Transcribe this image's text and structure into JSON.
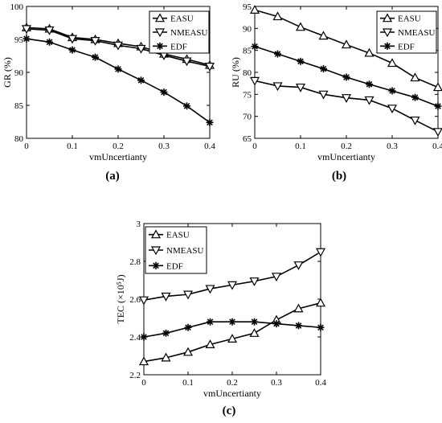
{
  "chart_data": [
    {
      "type": "line",
      "panel_label": "(a)",
      "x": [
        0,
        0.05,
        0.1,
        0.15,
        0.2,
        0.25,
        0.3,
        0.35,
        0.4
      ],
      "xlim": [
        0,
        0.4
      ],
      "ylim": [
        80,
        100
      ],
      "xticks": [
        "0",
        "0.1",
        "0.2",
        "0.3",
        "0.4"
      ],
      "yticks": [
        "80",
        "85",
        "90",
        "95",
        "100"
      ],
      "xlabel": "vmUncertianty",
      "ylabel": "GR (%)",
      "legend_position": "top-right",
      "grid": false,
      "series": [
        {
          "name": "EASU",
          "marker": "triangle-up",
          "values": [
            96.8,
            96.6,
            95.3,
            95.0,
            94.4,
            93.9,
            92.8,
            92.0,
            91.1
          ]
        },
        {
          "name": "NMEASU",
          "marker": "triangle-down",
          "values": [
            96.6,
            96.4,
            95.1,
            94.8,
            94.1,
            93.6,
            92.6,
            91.7,
            90.9
          ]
        },
        {
          "name": "EDF",
          "marker": "star",
          "values": [
            95.1,
            94.6,
            93.4,
            92.3,
            90.5,
            88.8,
            87.0,
            84.9,
            82.4
          ]
        }
      ]
    },
    {
      "type": "line",
      "panel_label": "(b)",
      "x": [
        0,
        0.05,
        0.1,
        0.15,
        0.2,
        0.25,
        0.3,
        0.35,
        0.4
      ],
      "xlim": [
        0,
        0.4
      ],
      "ylim": [
        65,
        95
      ],
      "xticks": [
        "0",
        "0.1",
        "0.2",
        "0.3",
        "0.4"
      ],
      "yticks": [
        "65",
        "70",
        "75",
        "80",
        "85",
        "90",
        "95"
      ],
      "xlabel": "vmUncertianty",
      "ylabel": "RU (%)",
      "legend_position": "top-right",
      "grid": false,
      "series": [
        {
          "name": "EASU",
          "marker": "triangle-up",
          "values": [
            94.2,
            92.7,
            90.3,
            88.3,
            86.3,
            84.4,
            82.1,
            78.8,
            76.6
          ]
        },
        {
          "name": "NMEASU",
          "marker": "triangle-down",
          "values": [
            78.1,
            76.9,
            76.6,
            75.0,
            74.2,
            73.7,
            71.8,
            69.1,
            66.5
          ]
        },
        {
          "name": "EDF",
          "marker": "star",
          "values": [
            85.9,
            84.2,
            82.5,
            80.8,
            78.9,
            77.3,
            75.8,
            74.3,
            72.3
          ]
        }
      ]
    },
    {
      "type": "line",
      "panel_label": "(c)",
      "x": [
        0,
        0.05,
        0.1,
        0.15,
        0.2,
        0.25,
        0.3,
        0.35,
        0.4
      ],
      "xlim": [
        0,
        0.4
      ],
      "ylim": [
        2.2,
        3.0
      ],
      "xticks": [
        "0",
        "0.1",
        "0.2",
        "0.3",
        "0.4"
      ],
      "yticks": [
        "2.2",
        "2.4",
        "2.6",
        "2.8",
        "3"
      ],
      "xlabel": "vmUncertianty",
      "ylabel": "TEC (×10⁵J)",
      "legend_position": "top-left",
      "grid": false,
      "series": [
        {
          "name": "EASU",
          "marker": "triangle-up",
          "values": [
            2.27,
            2.29,
            2.32,
            2.36,
            2.39,
            2.42,
            2.49,
            2.55,
            2.58
          ]
        },
        {
          "name": "NMEASU",
          "marker": "triangle-down",
          "values": [
            2.595,
            2.615,
            2.625,
            2.655,
            2.675,
            2.695,
            2.72,
            2.78,
            2.85
          ]
        },
        {
          "name": "EDF",
          "marker": "star",
          "values": [
            2.4,
            2.42,
            2.45,
            2.48,
            2.48,
            2.48,
            2.47,
            2.46,
            2.45
          ]
        }
      ]
    }
  ]
}
